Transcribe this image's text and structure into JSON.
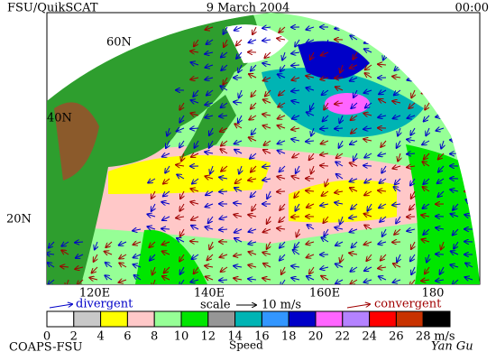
{
  "header": {
    "left": "FSU/QuikSCAT",
    "center": "9 March 2004",
    "right": "00:00"
  },
  "map": {
    "lat_labels": [
      "60N",
      "40N",
      "20N"
    ],
    "lon_labels": [
      "120E",
      "140E",
      "160E",
      "180"
    ]
  },
  "legend": {
    "divergent": "divergent",
    "scale": "scale",
    "scale_value": "10 m/s",
    "convergent": "convergent"
  },
  "colorbar": {
    "ticks": [
      0,
      2,
      4,
      6,
      8,
      10,
      12,
      14,
      16,
      18,
      20,
      22,
      24,
      26,
      28
    ],
    "colors": [
      "#ffffff",
      "#c8c8c8",
      "#ffff00",
      "#ffc8c8",
      "#96ff96",
      "#00e600",
      "#969696",
      "#00b4b4",
      "#3296ff",
      "#0000c8",
      "#ff64ff",
      "#b482ff",
      "#ff0000",
      "#c83200",
      "#000000"
    ],
    "unit": "m/s",
    "label": "Speed"
  },
  "footer": {
    "left": "COAPS-FSU",
    "signature": "Yan Gu"
  }
}
